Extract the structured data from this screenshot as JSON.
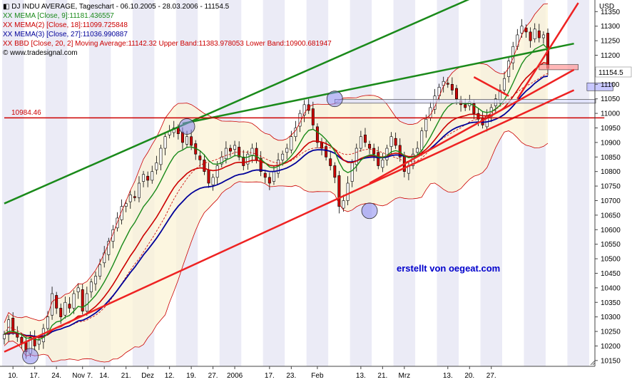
{
  "chart_data": {
    "type": "candlestick",
    "title": "DJ INDU AVERAGE, Tageschart - 06.10.2005 - 28.03.2006 - 11154.5",
    "unit_label": "USD",
    "watermark": "erstellt von oegeat.com",
    "source": "© www.tradesignal.com",
    "last_price_label": "11154.5",
    "level_label": "10984.46",
    "ylim": [
      10130,
      11390
    ],
    "y_ticks": [
      10150,
      10200,
      10250,
      10300,
      10350,
      10400,
      10450,
      10500,
      10550,
      10600,
      10650,
      10700,
      10750,
      10800,
      10850,
      10900,
      10950,
      11000,
      11050,
      11100,
      11150,
      11200,
      11250,
      11300,
      11350
    ],
    "x_ticks": [
      "10.",
      "17.",
      "24.",
      "Nov 7.",
      "14.",
      "21.",
      "Dez",
      "12.",
      "19.",
      "27.",
      "2006",
      "17.",
      "23.",
      "Feb",
      "13.",
      "21.",
      "Mrz",
      "13.",
      "20.",
      "27."
    ],
    "legend": [
      {
        "prefix": "XX",
        "text": "MEMA [Close, 9]:11181.436557",
        "color": "#1a8a1a"
      },
      {
        "prefix": "XX",
        "text": "MEMA(2) [Close, 18]:11099.725848",
        "color": "#cc0000"
      },
      {
        "prefix": "XX",
        "text": "MEMA(3) [Close, 27]:11036.990887",
        "color": "#000099"
      },
      {
        "prefix": "XX",
        "text": "BBD [Close, 20, 2] Moving Average:11142.32 Upper Band:11383.978053 Lower Band:10900.681947",
        "color": "#cc0000"
      }
    ],
    "series": [
      {
        "name": "MEMA [Close, 9]",
        "color": "#1a8a1a"
      },
      {
        "name": "MEMA(2) [Close, 18]",
        "color": "#cc0000"
      },
      {
        "name": "MEMA(3) [Close, 27]",
        "color": "#000099"
      },
      {
        "name": "BBD Upper Band",
        "color": "#cc0000"
      },
      {
        "name": "BBD Lower Band",
        "color": "#cc0000"
      }
    ],
    "closes": [
      10240,
      10290,
      10250,
      10230,
      10210,
      10180,
      10230,
      10200,
      10220,
      10260,
      10300,
      10380,
      10330,
      10300,
      10350,
      10330,
      10380,
      10400,
      10320,
      10380,
      10420,
      10440,
      10480,
      10520,
      10560,
      10600,
      10640,
      10680,
      10690,
      10720,
      10710,
      10760,
      10790,
      10770,
      10800,
      10830,
      10880,
      10920,
      10940,
      10950,
      10930,
      10900,
      10920,
      10890,
      10860,
      10840,
      10800,
      10760,
      10780,
      10820,
      10850,
      10880,
      10870,
      10890,
      10850,
      10820,
      10860,
      10880,
      10840,
      10800,
      10780,
      10760,
      10800,
      10840,
      10860,
      10880,
      10920,
      10950,
      11000,
      11030,
      11010,
      10960,
      10900,
      10880,
      10850,
      10820,
      10780,
      10680,
      10700,
      10760,
      10830,
      10880,
      10920,
      10900,
      10880,
      10860,
      10820,
      10840,
      10880,
      10920,
      10890,
      10850,
      10800,
      10820,
      10860,
      10880,
      10940,
      10980,
      11020,
      11060,
      11090,
      11110,
      11100,
      11080,
      11050,
      11030,
      11020,
      11040,
      11000,
      10980,
      10960,
      10990,
      11020,
      11050,
      11080,
      11120,
      11180,
      11230,
      11270,
      11300,
      11280,
      11250,
      11290,
      11260,
      11270,
      11154.5
    ],
    "trendlines": [
      {
        "from": [
          0,
          10180
        ],
        "to": [
          131,
          11080
        ],
        "color": "#ee2222",
        "width": 2.5
      },
      {
        "from": [
          84,
          10760
        ],
        "to": [
          131,
          11150
        ],
        "color": "#ee2222",
        "width": 2.5
      },
      {
        "from": [
          0,
          10690
        ],
        "to": [
          108,
          11400
        ],
        "color": "#1a8a1a",
        "width": 2.5
      },
      {
        "from": [
          41,
          10965
        ],
        "to": [
          131,
          11240
        ],
        "color": "#1a8a1a",
        "width": 2.5
      },
      {
        "from": [
          108,
          11125
        ],
        "to": [
          116,
          11060
        ],
        "color": "#ee2222",
        "width": 2.5
      },
      {
        "from": [
          118,
          11050
        ],
        "to": [
          132,
          11380
        ],
        "color": "#ee2222",
        "width": 2.5
      },
      {
        "from": [
          0,
          10984.46
        ],
        "to": [
          138,
          10984.46
        ],
        "color": "#cc0000",
        "width": 1.5
      }
    ],
    "circles": [
      [
        6,
        10165
      ],
      [
        42,
        10955
      ],
      [
        84,
        10665
      ],
      [
        76,
        11050
      ]
    ],
    "boxes": [
      {
        "x0": 76,
        "x1": 136,
        "y0": 11048,
        "y1": 11035,
        "fill": "#dde0ff"
      },
      {
        "x0": 123,
        "x1": 132,
        "y0": 11168,
        "y1": 11150,
        "fill": "#ff9999"
      },
      {
        "x0": 134,
        "x1": 140,
        "y0": 11105,
        "y1": 11078,
        "fill": "#b0b0ff"
      }
    ]
  }
}
